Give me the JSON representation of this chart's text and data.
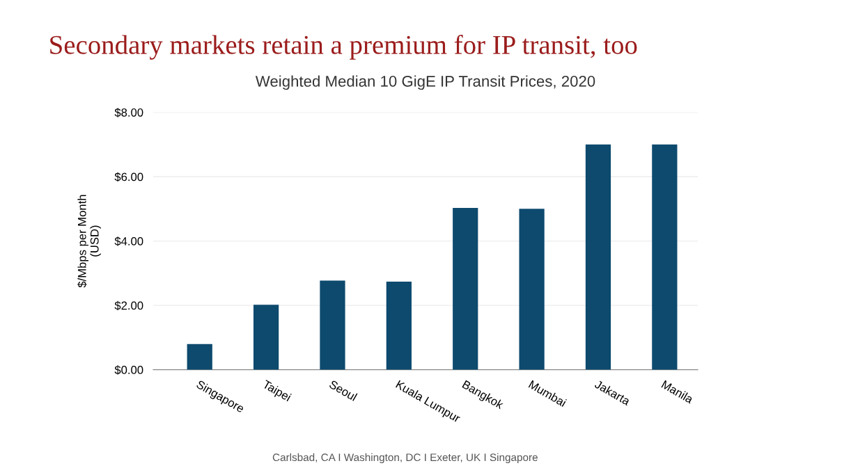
{
  "chart_data": {
    "type": "bar",
    "title": "Secondary markets retain a premium for IP transit, too",
    "subtitle": "Weighted Median 10 GigE IP Transit Prices, 2020",
    "ylabel": "$/Mbps per Month\n(USD)",
    "categories": [
      "Singapore",
      "Taipei",
      "Seoul",
      "Kuala Lumpur",
      "Bangkok",
      "Mumbai",
      "Jakarta",
      "Manila"
    ],
    "values": [
      0.8,
      2.02,
      2.77,
      2.74,
      5.03,
      5.0,
      7.0,
      7.0
    ],
    "color": "#0d4a6e",
    "ylim": [
      0,
      8
    ],
    "yticks": [
      {
        "value": 0,
        "label": "$0.00"
      },
      {
        "value": 2,
        "label": "$2.00"
      },
      {
        "value": 4,
        "label": "$4.00"
      },
      {
        "value": 6,
        "label": "$6.00"
      },
      {
        "value": 8,
        "label": "$8.00"
      }
    ],
    "grid": "y",
    "annotations": [
      "Carlsbad, CA I Washington, DC I Exeter, UK I Singapore"
    ]
  }
}
